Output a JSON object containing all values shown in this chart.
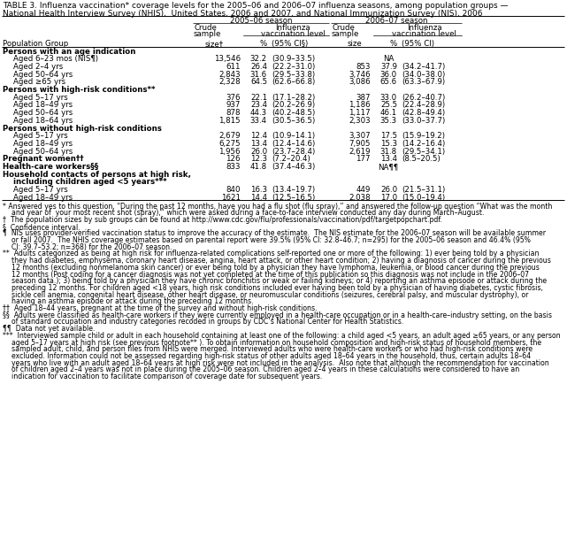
{
  "title_line1": "TABLE 3. Influenza vaccination* coverage levels for the 2005–06 and 2006–07 influenza seasons, among population groups —",
  "title_line2": "National Health Interview Survey (NHIS),  United States, 2006 and 2007, and National Immunization Survey (NIS), 2006",
  "rows": [
    {
      "group": "Persons with an age indication",
      "bold": true,
      "indent": false,
      "data": null
    },
    {
      "group": "Aged 6–23 mos (NIS¶)",
      "bold": false,
      "indent": true,
      "data": [
        "13,546",
        "32.2",
        "(30.9–33.5)",
        "",
        "NA",
        ""
      ]
    },
    {
      "group": "Aged 2–4 yrs",
      "bold": false,
      "indent": true,
      "data": [
        "611",
        "26.4",
        "(22.2–31.0)",
        "853",
        "37.9",
        "(34.2–41.7)"
      ]
    },
    {
      "group": "Aged 50–64 yrs",
      "bold": false,
      "indent": true,
      "data": [
        "2,843",
        "31.6",
        "(29.5–33.8)",
        "3,746",
        "36.0",
        "(34.0–38.0)"
      ]
    },
    {
      "group": "Aged ≥65 yrs",
      "bold": false,
      "indent": true,
      "data": [
        "2,328",
        "64.5",
        "(62.6–66.8)",
        "3,086",
        "65.6",
        "(63.3–67.9)"
      ]
    },
    {
      "group": "Persons with high-risk conditions**",
      "bold": true,
      "indent": false,
      "data": null
    },
    {
      "group": "Aged 5–17 yrs",
      "bold": false,
      "indent": true,
      "data": [
        "376",
        "22.1",
        "(17.1–28.2)",
        "387",
        "33.0",
        "(26.2–40.7)"
      ]
    },
    {
      "group": "Aged 18–49 yrs",
      "bold": false,
      "indent": true,
      "data": [
        "937",
        "23.4",
        "(20.2–26.9)",
        "1,186",
        "25.5",
        "(22.4–28.9)"
      ]
    },
    {
      "group": "Aged 50–64 yrs",
      "bold": false,
      "indent": true,
      "data": [
        "878",
        "44.3",
        "(40.2–48.5)",
        "1,117",
        "46.1",
        "(42.8–49.4)"
      ]
    },
    {
      "group": "Aged 18–64 yrs",
      "bold": false,
      "indent": true,
      "data": [
        "1,815",
        "33.4",
        "(30.5–36.5)",
        "2,303",
        "35.3",
        "(33.0–37.7)"
      ]
    },
    {
      "group": "Persons without high-risk conditions",
      "bold": true,
      "indent": false,
      "data": null
    },
    {
      "group": "Aged 5–17 yrs",
      "bold": false,
      "indent": true,
      "data": [
        "2,679",
        "12.4",
        "(10.9–14.1)",
        "3,307",
        "17.5",
        "(15.9–19.2)"
      ]
    },
    {
      "group": "Aged 18–49 yrs",
      "bold": false,
      "indent": true,
      "data": [
        "6,275",
        "13.4",
        "(12.4–14.6)",
        "7,905",
        "15.3",
        "(14.2–16.4)"
      ]
    },
    {
      "group": "Aged 50–64 yrs",
      "bold": false,
      "indent": true,
      "data": [
        "1,956",
        "26.0",
        "(23.7–28.4)",
        "2,619",
        "31.8",
        "(29.5–34.1)"
      ]
    },
    {
      "group": "Pregnant women††",
      "bold": true,
      "indent": false,
      "data": [
        "126",
        "12.3",
        "(7.2–20.4)",
        "177",
        "13.4",
        "(8.5–20.5)"
      ]
    },
    {
      "group": "Health-care workers§§",
      "bold": true,
      "indent": false,
      "data": [
        "833",
        "41.8",
        "(37.4–46.3)",
        "",
        "NA¶¶",
        ""
      ]
    },
    {
      "group": "Household contacts of persons at high risk,",
      "bold": true,
      "indent": false,
      "data": null,
      "extra_line": "including children aged <5 years***"
    },
    {
      "group": "Aged 5–17 yrs",
      "bold": false,
      "indent": true,
      "data": [
        "840",
        "16.3",
        "(13.4–19.7)",
        "449",
        "26.0",
        "(21.5–31.1)"
      ]
    },
    {
      "group": "Aged 18–49 yrs",
      "bold": false,
      "indent": true,
      "data": [
        "1621",
        "14.4",
        "(12.5–16.5)",
        "2,038",
        "17.0",
        "(15.0–19.4)"
      ]
    }
  ],
  "footnotes": [
    [
      "* ",
      "Answered yes to this question, “During the past 12 months, have you had a flu shot (flu spray),” and answered the follow-up question “What was the month",
      "and year of  your most recent shot (spray),” which were asked during a face-to-face interview conducted any day during March–August."
    ],
    [
      "† ",
      " The population sizes by sub groups can be found at http://www.cdc.gov/flu/professionals/vaccination/pdf/targetpopchart.pdf."
    ],
    [
      "§ ",
      " Confidence interval."
    ],
    [
      "¶ ",
      " NIS uses provider-verified vaccination status to improve the accuracy of the estimate.  The NIS estimate for the 2006–07 season will be available summer",
      "or fall 2007.  The NHIS coverage estimates based on parental report were 39.5% (95% CI: 32.8–46.7; n=295) for the 2005–06 season and 46.4% (95%",
      "CI: 39.7–53.2; n=368) for the 2006–07 season."
    ],
    [
      "** ",
      " Adults categorized as being at high risk for influenza-related complications self-reported one or more of the following: 1) ever being told by a physician",
      "they had diabetes, emphysema, coronary heart disease, angina, heart attack, or other heart condition; 2) having a diagnosis of cancer during the previous",
      "12 months (excluding nonmelanoma skin cancer) or ever being told by a physician they have lymphoma, leukemia, or blood cancer during the previous",
      "12 months (Post coding for a cancer diagnosis was not yet completed at the time of this publication so this diagnosis was not include in the 2006–07",
      "season data.); 3) being told by a physician they have chronic bronchitis or weak or failing kidneys; or 4) reporting an asthma episode or attack during the",
      "preceding 12 months. For children aged <18 years, high risk conditions included ever having been told by a physician of having diabetes, cystic fibrosis,",
      "sickle cell anemia, congenital heart disease, other heart disease, or neuromuscular conditions (seizures, cerebral palsy, and muscular dystrophy), or",
      "having an asthma episode or attack during the preceding 12 months."
    ],
    [
      "†† ",
      " Aged 18–44 years, pregnant at the time of the survey and without high-risk conditions."
    ],
    [
      "§§ ",
      " Adults were classified as health-care workers if they were currently employed in a health-care occupation or in a health-care–industry setting, on the basis",
      "of standard occupation and industry categories recoded in groups by CDC’s National Center for Health Statistics."
    ],
    [
      "¶¶ ",
      " Data not yet available."
    ],
    [
      "*** ",
      " Interviewed sample child or adult in each household containing at least one of the following: a child aged <5 years, an adult aged ≥65 years, or any person",
      "aged 5–17 years at high risk (see previous footnote** ). To obtain information on household composition and high-risk status of household members, the",
      "sampled adult, child, and person files from NHIS were merged. Interviewed adults who were health-care workers or who had high-risk conditions were",
      "excluded. Information could not be assessed regarding high-risk status of other adults aged 18–64 years in the household, thus, certain adults 18–64",
      "years who live with an adult aged 18–64 years at high risk were not included in the analysis.  Also note that although the recommendation for vaccination",
      "of children aged 2–4 years was not in place during the 2005–06 season. Children aged 2–4 years in these calculations were considered to have an",
      "indication for vaccination to facilitate comparison of coverage date for subsequent years."
    ]
  ],
  "bg_color": "#ffffff",
  "text_color": "#000000"
}
